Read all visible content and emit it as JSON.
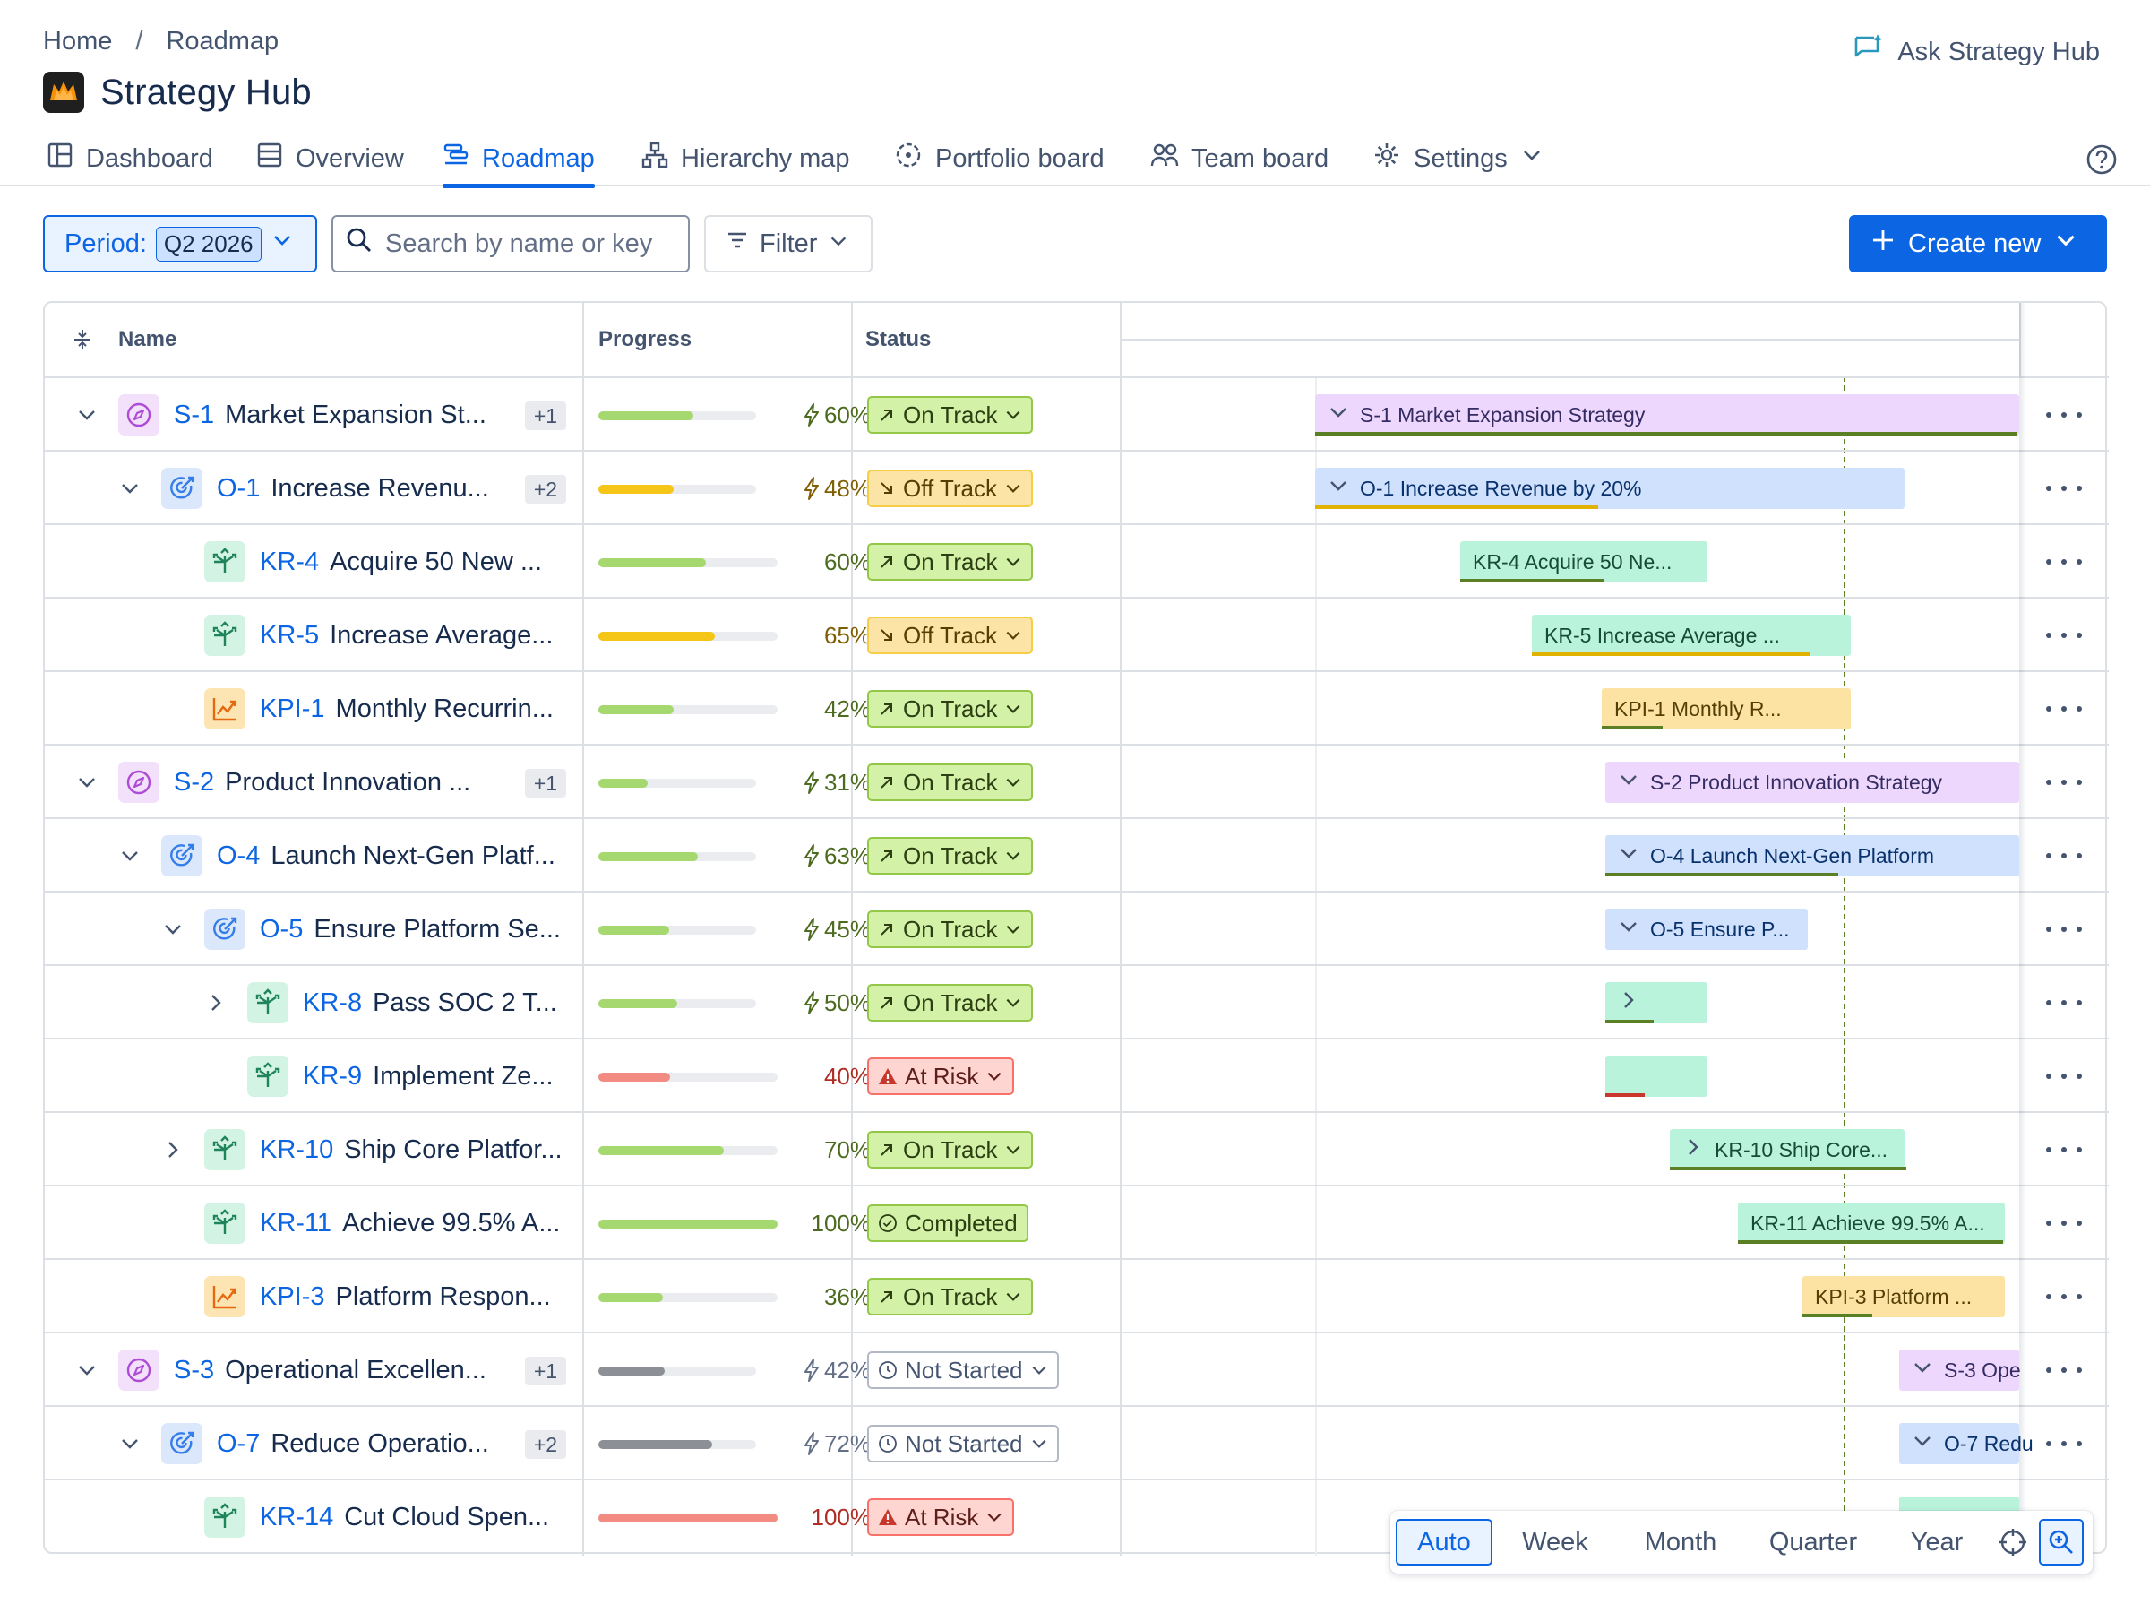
{
  "breadcrumb": {
    "home": "Home",
    "separator": "/",
    "current": "Roadmap"
  },
  "app": {
    "title": "Strategy Hub",
    "ask_label": "Ask Strategy Hub"
  },
  "tabs": [
    {
      "label": "Dashboard",
      "icon": "dashboard-icon"
    },
    {
      "label": "Overview",
      "icon": "overview-icon"
    },
    {
      "label": "Roadmap",
      "icon": "roadmap-icon",
      "active": true
    },
    {
      "label": "Hierarchy map",
      "icon": "hierarchy-icon"
    },
    {
      "label": "Portfolio board",
      "icon": "portfolio-icon"
    },
    {
      "label": "Team board",
      "icon": "team-icon"
    },
    {
      "label": "Settings",
      "icon": "gear-icon"
    }
  ],
  "toolbar": {
    "period_label": "Period:",
    "period_value": "Q2 2026",
    "search_placeholder": "Search by name or key",
    "filter_label": "Filter",
    "create_label": "Create new"
  },
  "columns": {
    "name": "Name",
    "progress": "Progress",
    "status": "Status"
  },
  "colors": {
    "accent": "#0c66e4",
    "progress_green": "#a5d86e",
    "progress_yellow": "#f5c518",
    "progress_red": "#f28b82",
    "progress_gray": "#8c8f95"
  },
  "rows": [
    {
      "key": "S-1",
      "name": "Market Expansion St...",
      "type": "s",
      "level": 0,
      "expander": "open",
      "badge": "+1",
      "progress": 60,
      "pct": "60%",
      "bolt": true,
      "color": "green",
      "status": "On Track",
      "status_kind": "ontrack",
      "bar_label": "S-1 Market Expansion Strategy",
      "bar_chevron": "down"
    },
    {
      "key": "O-1",
      "name": "Increase Revenu...",
      "type": "o",
      "level": 1,
      "expander": "open",
      "badge": "+2",
      "progress": 48,
      "pct": "48%",
      "bolt": true,
      "color": "yellow",
      "status": "Off Track",
      "status_kind": "offtrack",
      "bar_label": "O-1 Increase Revenue by 20%",
      "bar_chevron": "down"
    },
    {
      "key": "KR-4",
      "name": "Acquire 50 New ...",
      "type": "kr",
      "level": 2,
      "expander": "none",
      "progress": 60,
      "pct": "60%",
      "bolt": false,
      "color": "green",
      "status": "On Track",
      "status_kind": "ontrack",
      "bar_label": "KR-4 Acquire 50 Ne...",
      "bar_chevron": "none"
    },
    {
      "key": "KR-5",
      "name": "Increase Average...",
      "type": "kr",
      "level": 2,
      "expander": "none",
      "progress": 65,
      "pct": "65%",
      "bolt": false,
      "color": "yellow",
      "status": "Off Track",
      "status_kind": "offtrack",
      "bar_label": "KR-5 Increase Average ...",
      "bar_chevron": "none"
    },
    {
      "key": "KPI-1",
      "name": "Monthly Recurrin...",
      "type": "kpi",
      "level": 2,
      "expander": "none",
      "progress": 42,
      "pct": "42%",
      "bolt": false,
      "color": "green",
      "status": "On Track",
      "status_kind": "ontrack",
      "bar_label": "KPI-1 Monthly R...",
      "bar_chevron": "none"
    },
    {
      "key": "S-2",
      "name": "Product Innovation ...",
      "type": "s",
      "level": 0,
      "expander": "open",
      "badge": "+1",
      "progress": 31,
      "pct": "31%",
      "bolt": true,
      "color": "green",
      "status": "On Track",
      "status_kind": "ontrack",
      "bar_label": "S-2 Product Innovation Strategy",
      "bar_chevron": "down"
    },
    {
      "key": "O-4",
      "name": "Launch Next-Gen Platf...",
      "type": "o",
      "level": 1,
      "expander": "open",
      "progress": 63,
      "pct": "63%",
      "bolt": true,
      "color": "green",
      "status": "On Track",
      "status_kind": "ontrack",
      "bar_label": "O-4 Launch Next-Gen Platform",
      "bar_chevron": "down"
    },
    {
      "key": "O-5",
      "name": "Ensure Platform Se...",
      "type": "o",
      "level": 2,
      "expander": "open",
      "progress": 45,
      "pct": "45%",
      "bolt": true,
      "color": "green",
      "status": "On Track",
      "status_kind": "ontrack",
      "bar_label": "O-5 Ensure P...",
      "bar_chevron": "down"
    },
    {
      "key": "KR-8",
      "name": "Pass SOC 2 T...",
      "type": "kr",
      "level": 3,
      "expander": "closed",
      "progress": 50,
      "pct": "50%",
      "bolt": true,
      "color": "green",
      "status": "On Track",
      "status_kind": "ontrack",
      "bar_label": "",
      "bar_chevron": "right"
    },
    {
      "key": "KR-9",
      "name": "Implement Ze...",
      "type": "kr",
      "level": 3,
      "expander": "none",
      "progress": 40,
      "pct": "40%",
      "bolt": false,
      "color": "red",
      "status": "At Risk",
      "status_kind": "atrisk",
      "bar_label": "",
      "bar_chevron": "none"
    },
    {
      "key": "KR-10",
      "name": "Ship Core Platfor...",
      "type": "kr",
      "level": 2,
      "expander": "closed",
      "progress": 70,
      "pct": "70%",
      "bolt": false,
      "color": "green",
      "status": "On Track",
      "status_kind": "ontrack",
      "bar_label": "KR-10 Ship Core...",
      "bar_chevron": "right"
    },
    {
      "key": "KR-11",
      "name": "Achieve 99.5% A...",
      "type": "kr",
      "level": 2,
      "expander": "none",
      "progress": 100,
      "pct": "100%",
      "bolt": false,
      "color": "green",
      "status": "Completed",
      "status_kind": "completed",
      "bar_label": "KR-11 Achieve 99.5% A...",
      "bar_chevron": "none"
    },
    {
      "key": "KPI-3",
      "name": "Platform Respon...",
      "type": "kpi",
      "level": 2,
      "expander": "none",
      "progress": 36,
      "pct": "36%",
      "bolt": false,
      "color": "green",
      "status": "On Track",
      "status_kind": "ontrack",
      "bar_label": "KPI-3 Platform ...",
      "bar_chevron": "none"
    },
    {
      "key": "S-3",
      "name": "Operational Excellen...",
      "type": "s",
      "level": 0,
      "expander": "open",
      "badge": "+1",
      "progress": 42,
      "pct": "42%",
      "bolt": true,
      "color": "gray",
      "status": "Not Started",
      "status_kind": "notstarted",
      "bar_label": "S-3 Ope",
      "bar_chevron": "down"
    },
    {
      "key": "O-7",
      "name": "Reduce Operatio...",
      "type": "o",
      "level": 1,
      "expander": "open",
      "badge": "+2",
      "progress": 72,
      "pct": "72%",
      "bolt": true,
      "color": "gray",
      "status": "Not Started",
      "status_kind": "notstarted",
      "bar_label": "O-7 Redu",
      "bar_chevron": "down"
    },
    {
      "key": "KR-14",
      "name": "Cut Cloud Spen...",
      "type": "kr",
      "level": 2,
      "expander": "none",
      "progress": 100,
      "pct": "100%",
      "bolt": false,
      "color": "red",
      "status": "At Risk",
      "status_kind": "atrisk",
      "bar_label": "",
      "bar_chevron": "none"
    }
  ],
  "zoom": {
    "options": [
      "Auto",
      "Week",
      "Month",
      "Quarter",
      "Year"
    ],
    "active": "Auto"
  }
}
